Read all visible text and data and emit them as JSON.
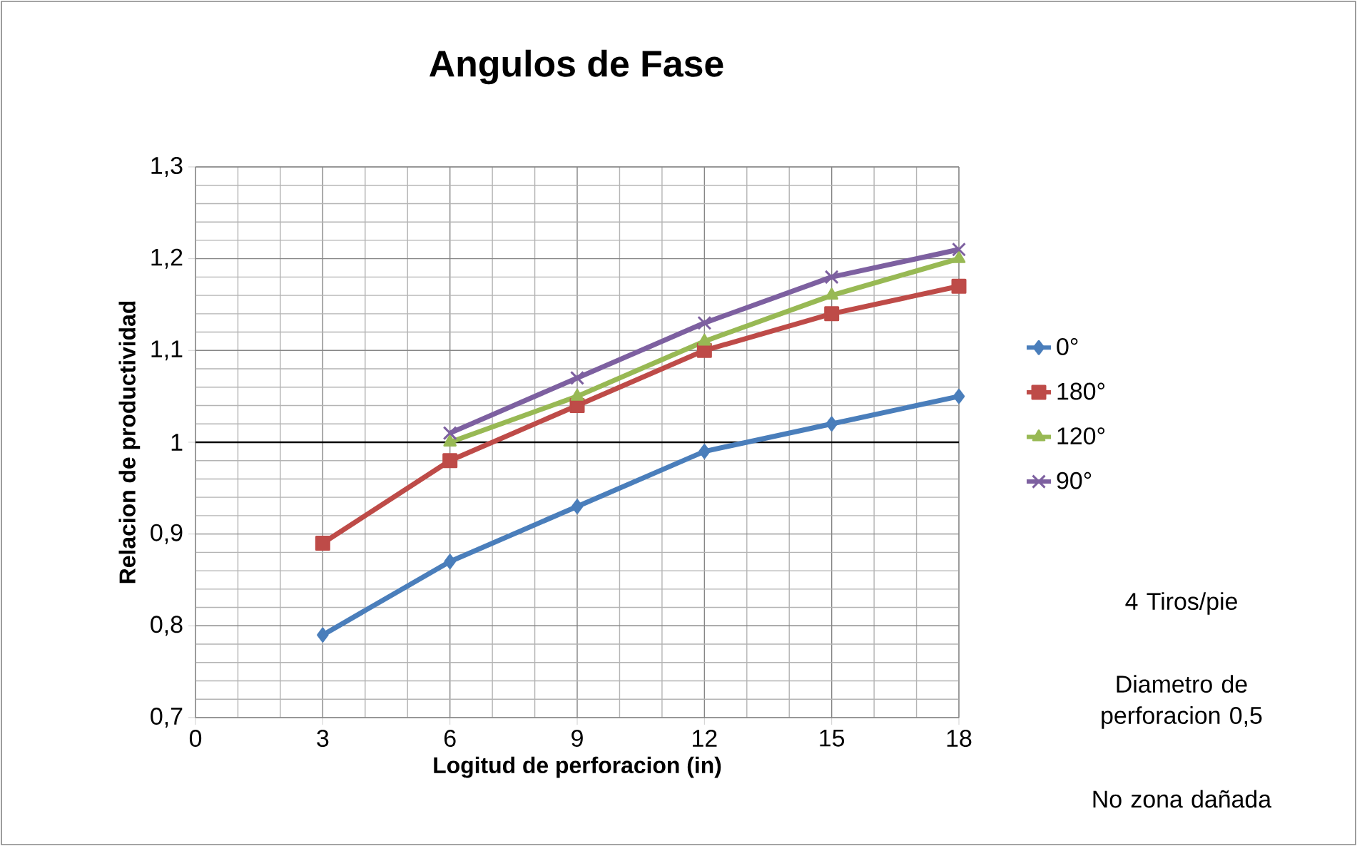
{
  "chart_data": {
    "type": "line",
    "title": "Angulos de Fase",
    "xlabel": "Logitud de perforacion (in)",
    "ylabel": "Relacion de productividad",
    "x": [
      3,
      6,
      9,
      12,
      15,
      18
    ],
    "series": [
      {
        "name": "0°",
        "color": "#4a7ebb",
        "marker": "diamond",
        "values": [
          0.79,
          0.87,
          0.93,
          0.99,
          1.02,
          1.05
        ]
      },
      {
        "name": "180°",
        "color": "#be4b48",
        "marker": "square",
        "values": [
          0.89,
          0.98,
          1.04,
          1.1,
          1.14,
          1.17
        ]
      },
      {
        "name": "120°",
        "color": "#98b954",
        "marker": "triangle",
        "values": [
          null,
          1.0,
          1.05,
          1.11,
          1.16,
          1.2
        ]
      },
      {
        "name": "90°",
        "color": "#7d60a0",
        "marker": "cross",
        "values": [
          null,
          1.01,
          1.07,
          1.13,
          1.18,
          1.21
        ]
      }
    ],
    "xlim": [
      0,
      18
    ],
    "xticks": [
      0,
      3,
      6,
      9,
      12,
      15,
      18
    ],
    "ylim": [
      0.7,
      1.3
    ],
    "yticks": [
      {
        "value": 0.7,
        "label": "0,7"
      },
      {
        "value": 0.8,
        "label": "0,8"
      },
      {
        "value": 0.9,
        "label": "0,9"
      },
      {
        "value": 1,
        "label": "1"
      },
      {
        "value": 1.1,
        "label": "1,1"
      },
      {
        "value": 1.2,
        "label": "1,2"
      },
      {
        "value": 1.3,
        "label": "1,3"
      }
    ],
    "ref_lines": [
      {
        "axis": "y",
        "value": 1,
        "color": "#000000"
      }
    ],
    "grid": true,
    "legend": "right",
    "line_style": "solid",
    "annotations": [
      "4 Tiros/pie",
      "Diametro de perforacion 0,5",
      "No zona dañada"
    ]
  }
}
